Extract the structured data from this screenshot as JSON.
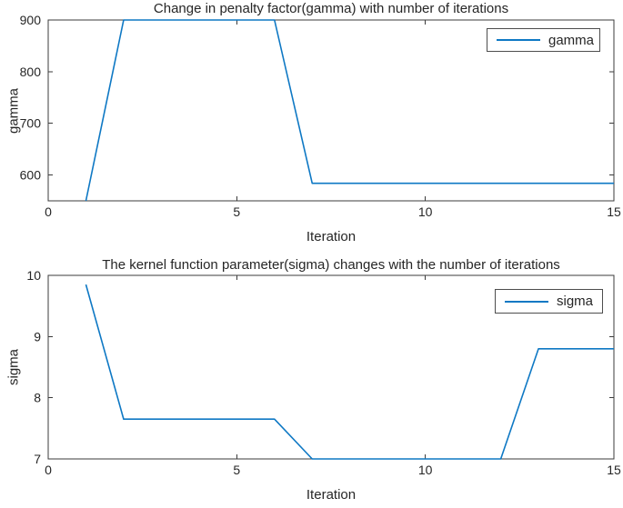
{
  "figure": {
    "background": "#ffffff"
  },
  "axis_style": {
    "text_color": "#262626",
    "axis_color": "#3b3b3b"
  },
  "chart_data": [
    {
      "type": "line",
      "title": "Change in penalty factor(gamma) with number of iterations",
      "xlabel": "Iteration",
      "ylabel": "gamma",
      "legend": {
        "entries": [
          "gamma"
        ],
        "position": "top-right"
      },
      "xlim": [
        0,
        15
      ],
      "ylim": [
        550,
        900
      ],
      "xticks": [
        0,
        5,
        10,
        15
      ],
      "yticks": [
        600,
        700,
        800,
        900
      ],
      "grid": false,
      "box": true,
      "x": [
        1,
        2,
        3,
        4,
        5,
        6,
        7,
        8,
        9,
        10,
        11,
        12,
        13,
        14,
        15
      ],
      "series": [
        {
          "name": "gamma",
          "color": "#0e78c4",
          "values": [
            550,
            900,
            900,
            900,
            900,
            900,
            584,
            584,
            584,
            584,
            584,
            584,
            584,
            584,
            584
          ]
        }
      ]
    },
    {
      "type": "line",
      "title": "The kernel function parameter(sigma) changes with the number of iterations",
      "xlabel": "Iteration",
      "ylabel": "sigma",
      "legend": {
        "entries": [
          "sigma"
        ],
        "position": "top-right"
      },
      "xlim": [
        0,
        15
      ],
      "ylim": [
        7,
        10
      ],
      "xticks": [
        0,
        5,
        10,
        15
      ],
      "yticks": [
        7,
        8,
        9,
        10
      ],
      "grid": false,
      "box": true,
      "x": [
        1,
        2,
        3,
        4,
        5,
        6,
        7,
        8,
        9,
        10,
        11,
        12,
        13,
        14,
        15
      ],
      "series": [
        {
          "name": "sigma",
          "color": "#0e78c4",
          "values": [
            9.85,
            7.65,
            7.65,
            7.65,
            7.65,
            7.65,
            7,
            7,
            7,
            7,
            7,
            7,
            8.8,
            8.8,
            8.8
          ]
        }
      ]
    }
  ]
}
